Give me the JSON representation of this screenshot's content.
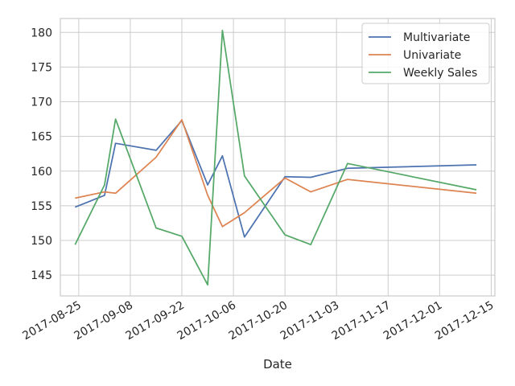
{
  "chart_data": {
    "type": "line",
    "xlabel": "Date",
    "ylabel": "",
    "x_tick_labels": [
      "2017-08-25",
      "2017-09-08",
      "2017-09-22",
      "2017-10-06",
      "2017-10-20",
      "2017-11-03",
      "2017-11-17",
      "2017-12-01",
      "2017-12-15"
    ],
    "y_ticks": [
      145,
      150,
      155,
      160,
      165,
      170,
      175,
      180
    ],
    "xlim": [
      "2017-08-20",
      "2017-12-16"
    ],
    "ylim": [
      142,
      182
    ],
    "grid": true,
    "legend_position": "top-right",
    "series": [
      {
        "name": "Multivariate",
        "color": "#4c72b0",
        "points": [
          {
            "x": "2017-08-24",
            "y": 154.8
          },
          {
            "x": "2017-09-01",
            "y": 156.5
          },
          {
            "x": "2017-09-04",
            "y": 164.0
          },
          {
            "x": "2017-09-15",
            "y": 163.0
          },
          {
            "x": "2017-09-22",
            "y": 167.3
          },
          {
            "x": "2017-09-29",
            "y": 158.0
          },
          {
            "x": "2017-10-03",
            "y": 162.2
          },
          {
            "x": "2017-10-09",
            "y": 150.5
          },
          {
            "x": "2017-10-20",
            "y": 159.2
          },
          {
            "x": "2017-10-27",
            "y": 159.1
          },
          {
            "x": "2017-11-06",
            "y": 160.4
          },
          {
            "x": "2017-12-11",
            "y": 160.9
          }
        ]
      },
      {
        "name": "Univariate",
        "color": "#dd8452",
        "points": [
          {
            "x": "2017-08-24",
            "y": 156.1
          },
          {
            "x": "2017-09-01",
            "y": 157.0
          },
          {
            "x": "2017-09-04",
            "y": 156.8
          },
          {
            "x": "2017-09-15",
            "y": 162.0
          },
          {
            "x": "2017-09-22",
            "y": 167.4
          },
          {
            "x": "2017-09-29",
            "y": 156.5
          },
          {
            "x": "2017-10-03",
            "y": 152.0
          },
          {
            "x": "2017-10-09",
            "y": 154.0
          },
          {
            "x": "2017-10-20",
            "y": 159.0
          },
          {
            "x": "2017-10-27",
            "y": 157.0
          },
          {
            "x": "2017-11-06",
            "y": 158.8
          },
          {
            "x": "2017-12-11",
            "y": 156.8
          }
        ]
      },
      {
        "name": "Weekly Sales",
        "color": "#55a868",
        "points": [
          {
            "x": "2017-08-24",
            "y": 149.4
          },
          {
            "x": "2017-09-01",
            "y": 158.0
          },
          {
            "x": "2017-09-04",
            "y": 167.5
          },
          {
            "x": "2017-09-15",
            "y": 151.8
          },
          {
            "x": "2017-09-22",
            "y": 150.6
          },
          {
            "x": "2017-09-29",
            "y": 143.6
          },
          {
            "x": "2017-10-03",
            "y": 180.3
          },
          {
            "x": "2017-10-09",
            "y": 159.3
          },
          {
            "x": "2017-10-20",
            "y": 150.8
          },
          {
            "x": "2017-10-27",
            "y": 149.4
          },
          {
            "x": "2017-11-06",
            "y": 161.1
          },
          {
            "x": "2017-12-11",
            "y": 157.3
          }
        ]
      }
    ]
  }
}
